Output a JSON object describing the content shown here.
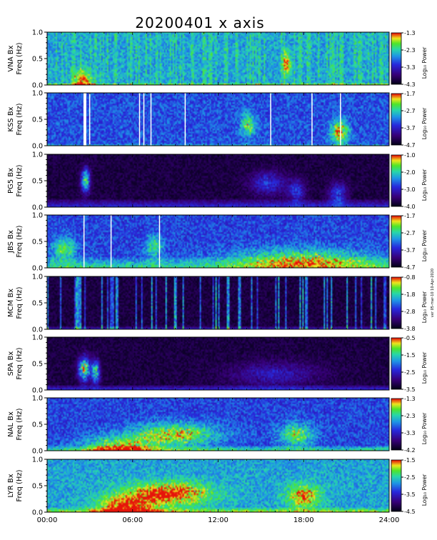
{
  "title": "20200401 x axis",
  "side_note": "ver 05-mar-10 10-Apr-2020",
  "colorbar_label": "Log₁₀ Power",
  "xticks": [
    "00:00",
    "06:00",
    "12:00",
    "18:00",
    "24:00"
  ],
  "yticks": [
    "0.0",
    "0.5",
    "1.0"
  ],
  "chart_data": {
    "type": "heatmap",
    "title": "20200401 x axis",
    "x_range_hours": [
      0,
      24
    ],
    "y_range_hz": [
      0,
      1.0
    ],
    "panels": [
      {
        "station": "VNA",
        "ylabel": "VNA Bx",
        "ylabel2": "Freq (Hz)",
        "cbar": [
          -4.3,
          -1.3
        ],
        "cbar_ticks": [
          "-1.3",
          "-2.3",
          "-3.3",
          "-4.3"
        ],
        "base": 0.58,
        "dark": false,
        "gaps": [],
        "spikes": true,
        "bottom_band": 0.03,
        "bursts": [
          [
            2.5,
            0.05,
            0.6,
            0.6
          ],
          [
            16.8,
            0.4,
            0.3,
            0.5
          ]
        ]
      },
      {
        "station": "KSS",
        "ylabel": "KSS Bx",
        "ylabel2": "Freq (Hz)",
        "cbar": [
          -4.7,
          -1.7
        ],
        "cbar_ticks": [
          "-1.7",
          "-2.7",
          "-3.7",
          "-4.7"
        ],
        "base": 0.44,
        "dark": false,
        "gaps": [
          2.6,
          3.0,
          6.5,
          6.8,
          7.3,
          9.7,
          15.7,
          18.6,
          20.6
        ],
        "spikes": false,
        "bottom_band": 0.02,
        "bursts": [
          [
            14.1,
            0.4,
            0.5,
            0.5
          ],
          [
            20.5,
            0.25,
            0.6,
            0.7
          ]
        ]
      },
      {
        "station": "PG5",
        "ylabel": "PG5 Bx",
        "ylabel2": "Freq (Hz)",
        "cbar": [
          -4.0,
          -1.0
        ],
        "cbar_ticks": [
          "-1.0",
          "-2.0",
          "-3.0",
          "-4.0"
        ],
        "base": 0.08,
        "dark": true,
        "gaps": [],
        "spikes": false,
        "bottom_band": 0.15,
        "bursts": [
          [
            2.7,
            0.5,
            0.3,
            0.9
          ],
          [
            15.5,
            0.45,
            1.2,
            0.4
          ],
          [
            17.5,
            0.3,
            0.6,
            0.4
          ],
          [
            20.4,
            0.25,
            0.6,
            0.45
          ]
        ]
      },
      {
        "station": "JBS",
        "ylabel": "JBS Bx",
        "ylabel2": "Freq (Hz)",
        "cbar": [
          -4.7,
          -1.7
        ],
        "cbar_ticks": [
          "-1.7",
          "-2.7",
          "-3.7",
          "-4.7"
        ],
        "base": 0.42,
        "dark": false,
        "gaps": [
          2.6,
          4.5,
          7.9
        ],
        "spikes": false,
        "bottom_band": 0.2,
        "bursts": [
          [
            1.2,
            0.35,
            0.8,
            0.5
          ],
          [
            7.5,
            0.4,
            0.6,
            0.4
          ],
          [
            18.0,
            0.15,
            5.0,
            0.5
          ]
        ]
      },
      {
        "station": "MCM",
        "ylabel": "MCM Bx",
        "ylabel2": "Freq (Hz)",
        "cbar": [
          -3.8,
          -0.8
        ],
        "cbar_ticks": [
          "-0.8",
          "-1.8",
          "-2.8",
          "-3.8"
        ],
        "base": 0.08,
        "dark": true,
        "gaps": [],
        "spikes": true,
        "bottom_band": 0.05,
        "bursts": []
      },
      {
        "station": "SPA",
        "ylabel": "SPA Bx",
        "ylabel2": "Freq (Hz)",
        "cbar": [
          -3.5,
          -0.5
        ],
        "cbar_ticks": [
          "-0.5",
          "-1.5",
          "-2.5",
          "-3.5"
        ],
        "base": 0.08,
        "dark": true,
        "gaps": [],
        "spikes": false,
        "bottom_band": 0.1,
        "bursts": [
          [
            2.6,
            0.4,
            0.4,
            1.0
          ],
          [
            3.4,
            0.35,
            0.3,
            0.8
          ],
          [
            16.0,
            0.3,
            3.0,
            0.3
          ]
        ]
      },
      {
        "station": "NAL",
        "ylabel": "NAL Bx",
        "ylabel2": "Freq (Hz)",
        "cbar": [
          -4.2,
          -1.3
        ],
        "cbar_ticks": [
          "-1.3",
          "-2.3",
          "-3.3",
          "-4.2"
        ],
        "base": 0.42,
        "dark": false,
        "gaps": [],
        "spikes": false,
        "bottom_band": 0.1,
        "bursts": [
          [
            9.0,
            0.3,
            3.0,
            0.6
          ],
          [
            17.5,
            0.3,
            1.2,
            0.5
          ],
          [
            5.0,
            0.05,
            2.5,
            0.6
          ]
        ]
      },
      {
        "station": "LYR",
        "ylabel": "LYR Bx",
        "ylabel2": "Freq (Hz)",
        "cbar": [
          -4.5,
          -1.5
        ],
        "cbar_ticks": [
          "-1.5",
          "-2.5",
          "-3.5",
          "-4.5"
        ],
        "base": 0.58,
        "dark": false,
        "gaps": [],
        "spikes": false,
        "bottom_band": 0.08,
        "bursts": [
          [
            8.5,
            0.35,
            3.0,
            0.6
          ],
          [
            18.0,
            0.3,
            1.2,
            0.5
          ],
          [
            5.5,
            0.08,
            2.0,
            0.6
          ]
        ]
      }
    ]
  }
}
